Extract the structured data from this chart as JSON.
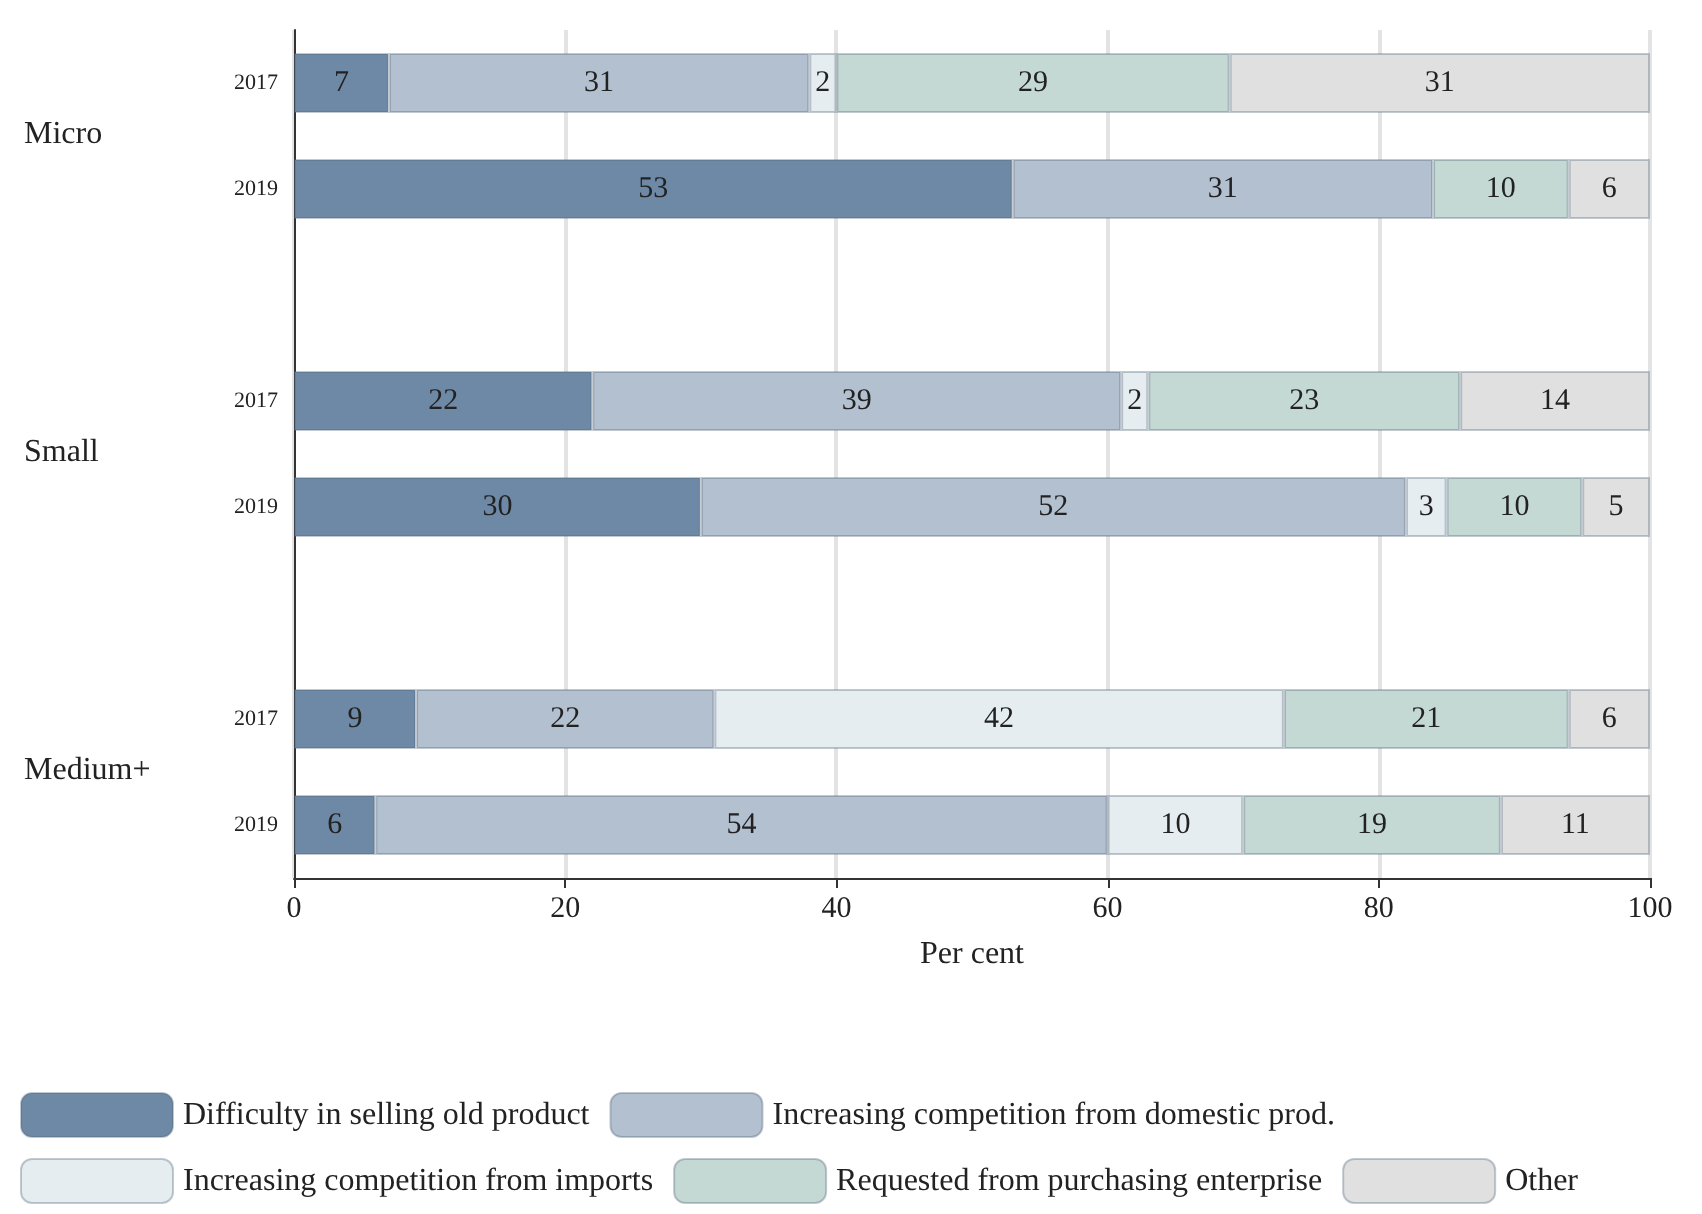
{
  "chart_data": {
    "type": "bar",
    "orientation": "horizontal",
    "stacked": true,
    "data_labels": true,
    "grid": "x",
    "legend": "bottom",
    "xlabel": "Per cent",
    "categories": [
      "2017",
      "2019",
      null,
      "2017",
      "2019",
      null,
      "2017",
      "2019"
    ],
    "annotations": [
      "Micro",
      "Small",
      "Medium+"
    ],
    "xlim": [
      0,
      100
    ],
    "xticks": [
      0,
      20,
      40,
      60,
      80,
      100
    ],
    "series": [
      {
        "name": "Difficulty in selling old product",
        "color": "#6e89a6",
        "values": [
          7,
          53,
          null,
          22,
          30,
          null,
          9,
          6
        ]
      },
      {
        "name": "Increasing competition from domestic prod.",
        "color": "#b3c0cf",
        "values": [
          31,
          31,
          null,
          39,
          52,
          null,
          22,
          54
        ]
      },
      {
        "name": "Increasing competition from imports",
        "color": "#e5edf1",
        "values": [
          2,
          null,
          null,
          2,
          3,
          null,
          42,
          10
        ]
      },
      {
        "name": "Requested from purchasing enterprise",
        "color": "#c5d9d4",
        "values": [
          29,
          10,
          null,
          23,
          10,
          null,
          21,
          19
        ]
      },
      {
        "name": "Other",
        "color": "#e0e0e0",
        "values": [
          31,
          6,
          null,
          14,
          5,
          null,
          6,
          11
        ]
      }
    ]
  }
}
